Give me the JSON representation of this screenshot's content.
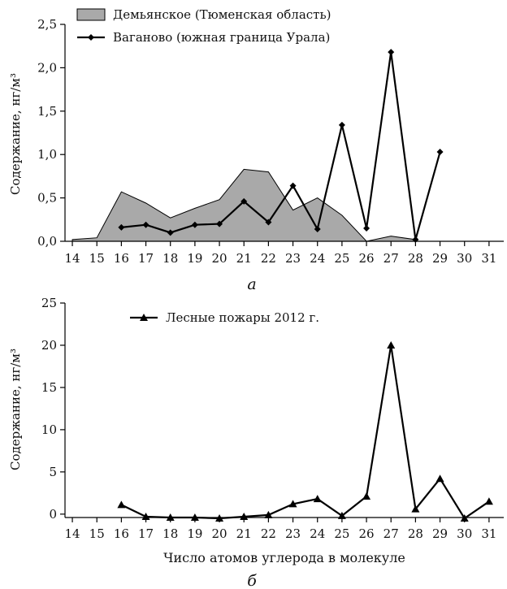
{
  "chart_data": [
    {
      "type": "area",
      "panel_label": "а",
      "ylabel": "Содержание, нг/м³",
      "xlabel": "",
      "x_ticks": [
        14,
        15,
        16,
        17,
        18,
        19,
        20,
        21,
        22,
        23,
        24,
        25,
        26,
        27,
        28,
        29,
        30,
        31
      ],
      "y_ticks": [
        "0,0",
        "0,5",
        "1,0",
        "1,5",
        "2,0",
        "2,5"
      ],
      "xlim": [
        13.7,
        31.6
      ],
      "ylim": [
        0,
        2.5
      ],
      "legend_position": "top-left",
      "colors": {
        "area_fill": "#a9a9a9",
        "line": "#000000"
      },
      "series": [
        {
          "name": "Демьянское (Тюменская область)",
          "kind": "area",
          "x": [
            14,
            15,
            16,
            17,
            18,
            19,
            20,
            21,
            22,
            23,
            24,
            25,
            26,
            27,
            28
          ],
          "values": [
            0.02,
            0.04,
            0.57,
            0.44,
            0.27,
            0.38,
            0.48,
            0.83,
            0.8,
            0.36,
            0.5,
            0.3,
            0.0,
            0.06,
            0.02
          ]
        },
        {
          "name": "Ваганово (южная граница Урала)",
          "kind": "line",
          "marker": "diamond",
          "x": [
            16,
            17,
            18,
            19,
            20,
            21,
            22,
            23,
            24,
            25,
            26,
            27,
            28,
            29
          ],
          "values": [
            0.16,
            0.19,
            0.1,
            0.19,
            0.2,
            0.46,
            0.22,
            0.64,
            0.14,
            1.34,
            0.15,
            2.18,
            0.02,
            1.03
          ]
        }
      ]
    },
    {
      "type": "line",
      "panel_label": "б",
      "ylabel": "Содержание, нг/м³",
      "xlabel": "Число атомов углерода в молекуле",
      "x_ticks": [
        14,
        15,
        16,
        17,
        18,
        19,
        20,
        21,
        22,
        23,
        24,
        25,
        26,
        27,
        28,
        29,
        30,
        31
      ],
      "y_ticks": [
        "0",
        "5",
        "10",
        "15",
        "20",
        "25"
      ],
      "xlim": [
        13.7,
        31.6
      ],
      "ylim": [
        -0.4,
        25
      ],
      "legend_position": "top-left",
      "colors": {
        "line": "#000000"
      },
      "series": [
        {
          "name": "Лесные пожары 2012 г.",
          "kind": "line",
          "marker": "triangle",
          "x": [
            16,
            17,
            18,
            19,
            20,
            21,
            22,
            23,
            24,
            25,
            26,
            27,
            28,
            29,
            30,
            31
          ],
          "values": [
            1.1,
            -0.3,
            -0.4,
            -0.4,
            -0.5,
            -0.3,
            -0.1,
            1.2,
            1.8,
            -0.2,
            2.1,
            20.0,
            0.6,
            4.2,
            -0.5,
            1.5
          ]
        }
      ]
    }
  ]
}
